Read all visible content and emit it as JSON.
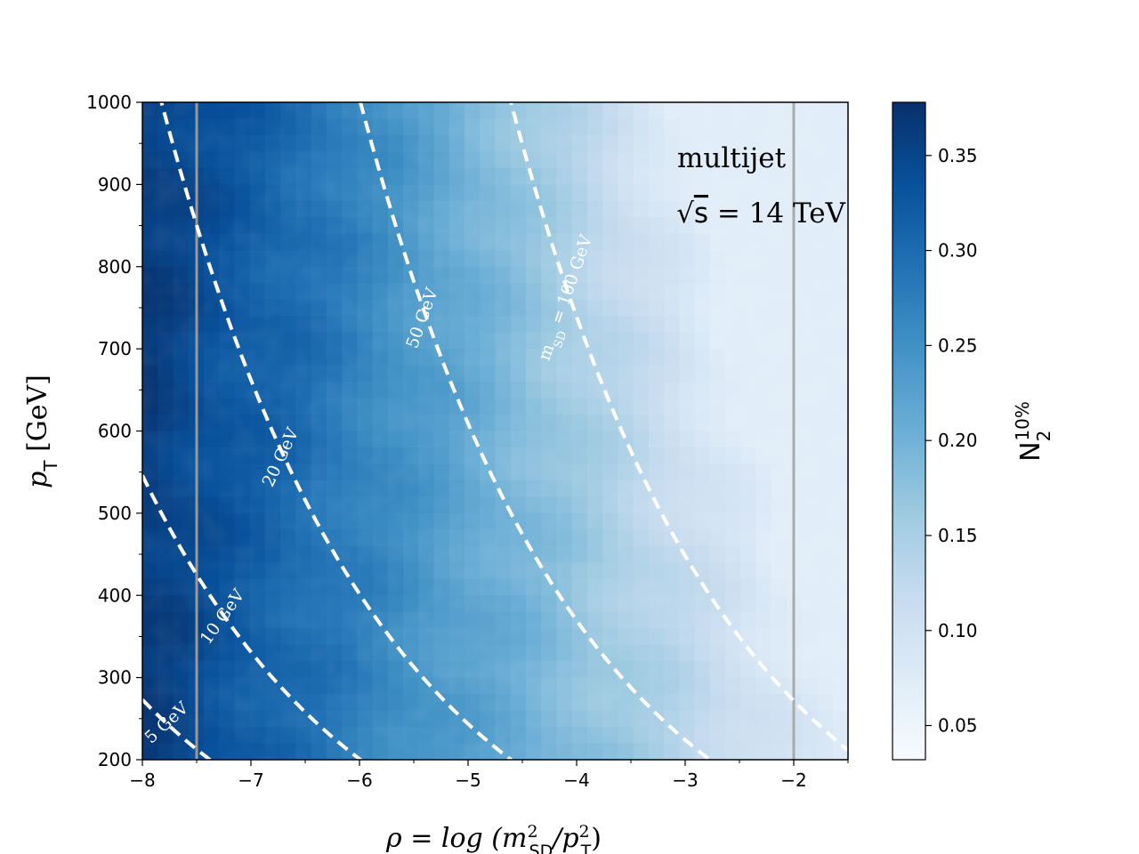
{
  "chart_data": {
    "type": "heatmap",
    "xlabel": "ρ = log (m²SD/p²T)",
    "xlabel_parts": {
      "pre": "ρ = log (m",
      "sup1": "2",
      "sub1": "SD",
      "mid": "/p",
      "sup2": "2",
      "sub2": "T",
      "post": ")"
    },
    "ylabel": "pT [GeV]",
    "ylabel_parts": {
      "p": "p",
      "sub": "T",
      "rest": " [GeV]"
    },
    "xlim": [
      -8,
      -1.5
    ],
    "ylim": [
      200,
      1000
    ],
    "x_ticks": [
      -8,
      -7,
      -6,
      -5,
      -4,
      -3,
      -2
    ],
    "x_tick_labels": [
      "−8",
      "−7",
      "−6",
      "−5",
      "−4",
      "−3",
      "−2"
    ],
    "y_ticks": [
      200,
      300,
      400,
      500,
      600,
      700,
      800,
      900,
      1000
    ],
    "y_tick_labels": [
      "200",
      "300",
      "400",
      "500",
      "600",
      "700",
      "800",
      "900",
      "1000"
    ],
    "colorbar": {
      "label": "N2 10%",
      "label_parts": {
        "base": "N",
        "sub": "2",
        "sup": "10%"
      },
      "range": [
        0.032,
        0.378
      ],
      "ticks": [
        0.05,
        0.1,
        0.15,
        0.2,
        0.25,
        0.3,
        0.35
      ],
      "tick_labels": [
        "0.05",
        "0.10",
        "0.15",
        "0.20",
        "0.25",
        "0.30",
        "0.35"
      ],
      "colormap": "Blues"
    },
    "vertical_lines": [
      {
        "x": -7.5,
        "color": "#999999"
      },
      {
        "x": -2.0,
        "color": "#aaaaaa"
      }
    ],
    "mass_contours": [
      {
        "mass_gev": 5,
        "label": "5 GeV"
      },
      {
        "mass_gev": 10,
        "label": "10 GeV"
      },
      {
        "mass_gev": 20,
        "label": "20 GeV"
      },
      {
        "mass_gev": 50,
        "label": "50 GeV"
      },
      {
        "mass_gev": 100,
        "label": "mSD = 100 GeV",
        "label_parts": {
          "m": "m",
          "sub": "SD",
          "rest": " = 100 GeV"
        }
      }
    ],
    "annotations": {
      "process": "multijet",
      "energy": "√s = 14 TeV",
      "energy_parts": {
        "sqrt": "√",
        "s": "s",
        "rest": " = 14 TeV"
      }
    },
    "field_trend": "N2 10% highest (~0.36) at low ρ, decreasing toward ~0.08 at high ρ and high pT"
  }
}
